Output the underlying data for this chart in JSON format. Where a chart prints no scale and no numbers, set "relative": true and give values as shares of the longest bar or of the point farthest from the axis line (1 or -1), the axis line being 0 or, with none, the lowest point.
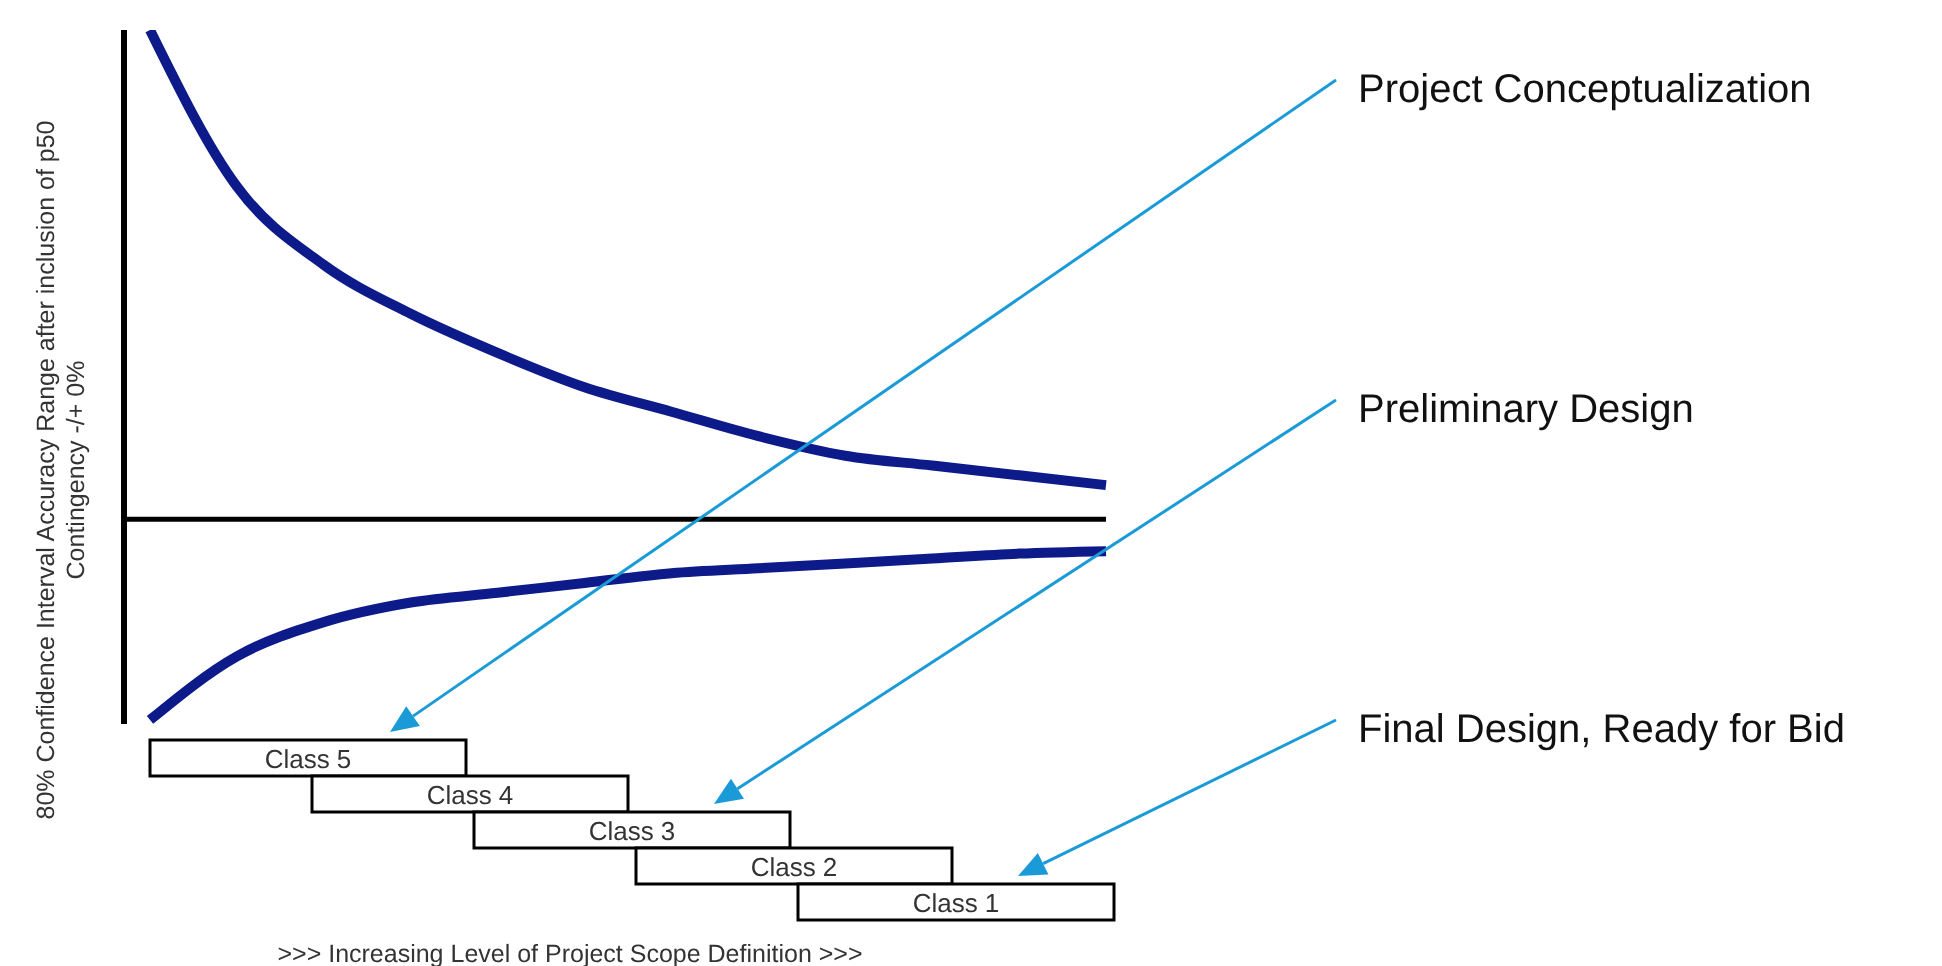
{
  "chart_data": {
    "type": "line",
    "relative": true,
    "ylabel": "80% Confidence Interval  Accuracy Range  after inclusion of p50 Contingency  -/+ 0%",
    "categories": [
      null,
      null,
      null,
      null,
      null,
      null,
      null,
      null,
      null,
      null,
      null,
      null
    ],
    "series": [
      {
        "color": "#0d1a8a",
        "values": [
          1,
          0.68,
          0.52,
          0.42,
          0.34,
          0.27,
          0.22,
          0.17,
          0.13,
          0.11,
          0.09,
          0.07
        ]
      },
      {
        "color": "#0d1a8a",
        "values": [
          -0.41,
          -0.28,
          -0.21,
          -0.17,
          -0.15,
          -0.13,
          -0.11,
          -0.1,
          -0.09,
          -0.08,
          -0.07,
          -0.065
        ]
      }
    ],
    "marker": "none",
    "line_style": "solid",
    "legend": false,
    "grid": false,
    "tick_labels": false,
    "annotations": [
      "Project Conceptualization",
      "Preliminary Design",
      "Final Design, Ready for Bid",
      "Class 5",
      "Class 4",
      "Class 3",
      "Class 2",
      "Class 1",
      ">>> Increasing  Level  of  Project  Scope  Definition  >>>"
    ]
  }
}
